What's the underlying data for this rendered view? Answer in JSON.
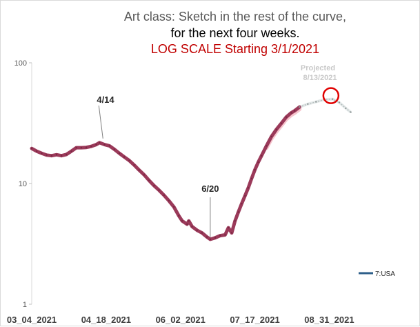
{
  "chart_data": {
    "type": "line",
    "title_lines": [
      "Art class:  Sketch in the rest of the curve,",
      "for the next four weeks.",
      "LOG SCALE Starting 3/1/2021"
    ],
    "y_scale": "log",
    "ylim": [
      1,
      100
    ],
    "y_ticks": [
      {
        "value": 1,
        "label": "1"
      },
      {
        "value": 10,
        "label": "10"
      },
      {
        "value": 100,
        "label": "100"
      }
    ],
    "x_range": [
      "2021-03-04",
      "2021-09-14"
    ],
    "x_ticks": [
      {
        "date": "2021-03-04",
        "label": "03_04_2021"
      },
      {
        "date": "2021-04-18",
        "label": "04_18_2021"
      },
      {
        "date": "2021-06-02",
        "label": "06_02_2021"
      },
      {
        "date": "2021-07-17",
        "label": "07_17_2021"
      },
      {
        "date": "2021-08-31",
        "label": "08_31_2021"
      }
    ],
    "grid": false,
    "legend_position": "right",
    "series": [
      {
        "name": "7:USA",
        "color": "#9b3a5a",
        "legend_color": "#2e5f8a",
        "points": [
          [
            "2021-03-04",
            19.5
          ],
          [
            "2021-03-07",
            18.5
          ],
          [
            "2021-03-10",
            17.8
          ],
          [
            "2021-03-13",
            17.2
          ],
          [
            "2021-03-16",
            17.0
          ],
          [
            "2021-03-19",
            17.3
          ],
          [
            "2021-03-22",
            17.0
          ],
          [
            "2021-03-25",
            17.4
          ],
          [
            "2021-03-28",
            18.5
          ],
          [
            "2021-03-31",
            19.8
          ],
          [
            "2021-04-03",
            19.8
          ],
          [
            "2021-04-06",
            19.9
          ],
          [
            "2021-04-09",
            20.3
          ],
          [
            "2021-04-12",
            21.0
          ],
          [
            "2021-04-14",
            21.8
          ],
          [
            "2021-04-17",
            21.0
          ],
          [
            "2021-04-20",
            20.5
          ],
          [
            "2021-04-23",
            19.2
          ],
          [
            "2021-04-26",
            17.8
          ],
          [
            "2021-04-29",
            16.6
          ],
          [
            "2021-05-02",
            15.5
          ],
          [
            "2021-05-05",
            14.2
          ],
          [
            "2021-05-08",
            12.9
          ],
          [
            "2021-05-11",
            11.8
          ],
          [
            "2021-05-14",
            10.6
          ],
          [
            "2021-05-17",
            9.6
          ],
          [
            "2021-05-20",
            8.8
          ],
          [
            "2021-05-23",
            8.0
          ],
          [
            "2021-05-26",
            7.2
          ],
          [
            "2021-05-29",
            6.4
          ],
          [
            "2021-06-01",
            5.4
          ],
          [
            "2021-06-03",
            4.9
          ],
          [
            "2021-06-06",
            4.6
          ],
          [
            "2021-06-07",
            4.9
          ],
          [
            "2021-06-09",
            4.4
          ],
          [
            "2021-06-12",
            4.1
          ],
          [
            "2021-06-15",
            3.9
          ],
          [
            "2021-06-18",
            3.6
          ],
          [
            "2021-06-20",
            3.45
          ],
          [
            "2021-06-23",
            3.55
          ],
          [
            "2021-06-26",
            3.7
          ],
          [
            "2021-06-29",
            3.75
          ],
          [
            "2021-07-01",
            4.3
          ],
          [
            "2021-07-03",
            3.9
          ],
          [
            "2021-07-05",
            4.9
          ],
          [
            "2021-07-07",
            5.8
          ],
          [
            "2021-07-09",
            6.8
          ],
          [
            "2021-07-11",
            7.9
          ],
          [
            "2021-07-13",
            9.2
          ],
          [
            "2021-07-15",
            11.0
          ],
          [
            "2021-07-17",
            13.0
          ],
          [
            "2021-07-19",
            15.0
          ],
          [
            "2021-07-21",
            17.0
          ],
          [
            "2021-07-24",
            20.5
          ],
          [
            "2021-07-27",
            24.5
          ],
          [
            "2021-07-30",
            28.0
          ],
          [
            "2021-08-02",
            31.5
          ],
          [
            "2021-08-05",
            35.5
          ],
          [
            "2021-08-08",
            38.5
          ],
          [
            "2021-08-10",
            40.0
          ],
          [
            "2021-08-13",
            43.0
          ]
        ]
      },
      {
        "name": "Projected",
        "color": "#a0a8a8",
        "points": [
          [
            "2021-08-13",
            43.0
          ],
          [
            "2021-08-18",
            45.5
          ],
          [
            "2021-08-23",
            47.5
          ],
          [
            "2021-08-28",
            49.5
          ],
          [
            "2021-09-02",
            50.0
          ],
          [
            "2021-09-06",
            47.0
          ],
          [
            "2021-09-10",
            42.0
          ],
          [
            "2021-09-13",
            39.0
          ]
        ]
      }
    ],
    "annotations": [
      {
        "label": "4/14",
        "date": "2021-04-14",
        "value": 21.8
      },
      {
        "label": "6/20",
        "date": "2021-06-20",
        "value": 3.45
      },
      {
        "label": "Projected",
        "label2": "8/13/2021",
        "date": "2021-09-01",
        "value": 50.0
      }
    ]
  }
}
